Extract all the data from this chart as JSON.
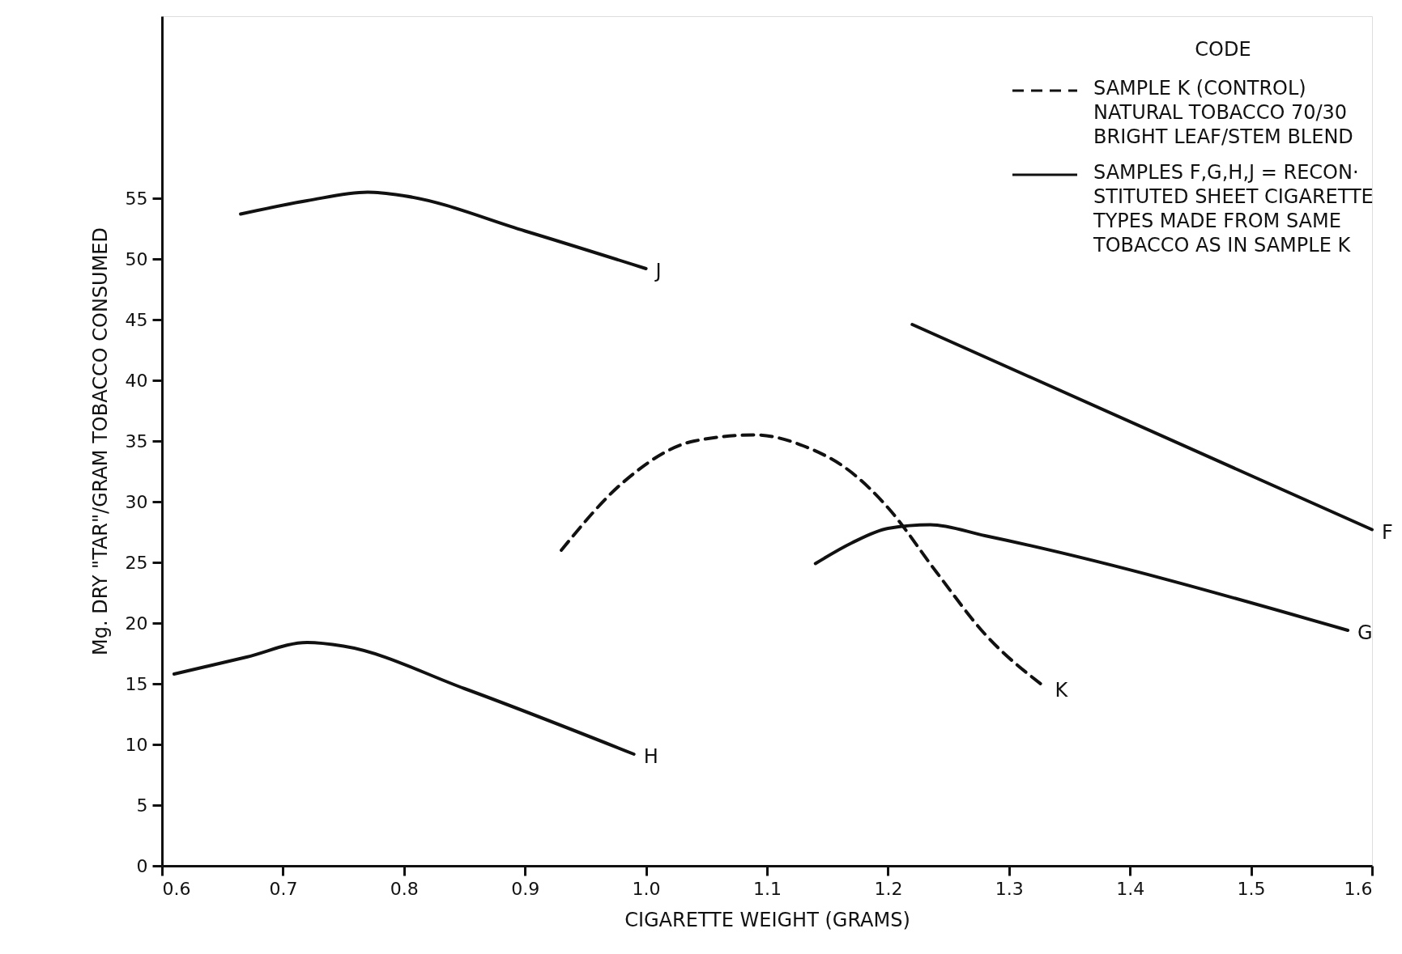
{
  "chart_data": {
    "type": "line",
    "xlabel": "CIGARETTE WEIGHT (GRAMS)",
    "ylabel": "Mg. DRY \"TAR\"/GRAM TOBACCO CONSUMED",
    "xlim": [
      0.6,
      1.6
    ],
    "xticks": [
      0.6,
      0.7,
      0.8,
      0.9,
      {
        "value": 1.0,
        "label": "1.0"
      },
      1.1,
      1.2,
      1.3,
      1.4,
      1.5,
      1.6
    ],
    "ylim": [
      0,
      70
    ],
    "yticks": [
      0,
      5,
      10,
      15,
      20,
      25,
      30,
      35,
      40,
      45,
      50,
      55
    ],
    "grid": false,
    "series": [
      {
        "name": "J",
        "color": "#111111",
        "line_style": "solid",
        "x": [
          0.665,
          0.72,
          0.77,
          0.8,
          0.9,
          1.0
        ],
        "values": [
          53.7,
          54.8,
          55.5,
          55.2,
          52.3,
          49.2
        ]
      },
      {
        "name": "H",
        "color": "#111111",
        "line_style": "solid",
        "x": [
          0.61,
          0.67,
          0.72,
          0.75,
          0.85,
          0.99
        ],
        "values": [
          15.8,
          17.2,
          18.4,
          18.1,
          14.6,
          9.2
        ]
      },
      {
        "name": "K",
        "color": "#111111",
        "line_style": "dashed",
        "x": [
          0.93,
          0.98,
          1.04,
          1.09,
          1.13,
          1.17,
          1.2,
          1.24,
          1.28,
          1.33
        ],
        "values": [
          26.0,
          31.5,
          35.0,
          35.5,
          34.6,
          32.4,
          29.5,
          24.2,
          19.1,
          14.7
        ]
      },
      {
        "name": "G",
        "color": "#111111",
        "line_style": "solid",
        "x": [
          1.14,
          1.17,
          1.2,
          1.235,
          1.28,
          1.58
        ],
        "values": [
          24.9,
          26.6,
          27.8,
          28.1,
          27.2,
          19.4
        ]
      },
      {
        "name": "F",
        "color": "#111111",
        "line_style": "solid",
        "x": [
          1.22,
          1.6
        ],
        "values": [
          44.6,
          27.7
        ]
      }
    ],
    "annotations": [
      "CODE",
      "SAMPLE K (CONTROL)\nNATURAL TOBACCO 70/30\nBRIGHT LEAF/STEM BLEND",
      "SAMPLES F,G,H,J = RECON·\nSTITUTED SHEET CIGARETTE\nTYPES MADE FROM SAME\nTOBACCO AS IN SAMPLE K"
    ]
  }
}
